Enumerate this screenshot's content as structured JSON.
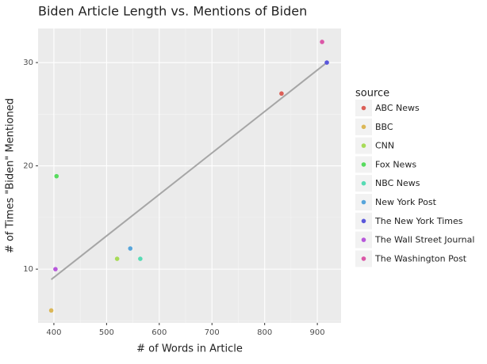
{
  "chart_data": {
    "type": "scatter",
    "title": "Biden Article Length vs. Mentions of Biden",
    "x_label": "# of Words in Article",
    "y_label": "# of Times \"Biden\" Mentioned",
    "legend_title": "source",
    "legend": "right",
    "grid": true,
    "xlim": [
      370,
      945
    ],
    "xticks": [
      400,
      500,
      600,
      700,
      800,
      900
    ],
    "ylim": [
      4.8,
      33.3
    ],
    "yticks": [
      10,
      20,
      30
    ],
    "series": [
      {
        "name": "ABC News",
        "color": "#db5f57",
        "x": [
          832
        ],
        "y": [
          27
        ]
      },
      {
        "name": "BBC",
        "color": "#dbb757",
        "x": [
          395
        ],
        "y": [
          6
        ]
      },
      {
        "name": "CNN",
        "color": "#a7db57",
        "x": [
          520
        ],
        "y": [
          11
        ]
      },
      {
        "name": "Fox News",
        "color": "#57db5e",
        "x": [
          405
        ],
        "y": [
          19
        ]
      },
      {
        "name": "NBC News",
        "color": "#57dbb4",
        "x": [
          564
        ],
        "y": [
          11
        ]
      },
      {
        "name": "New York Post",
        "color": "#57a5db",
        "x": [
          545
        ],
        "y": [
          12
        ]
      },
      {
        "name": "The New York Times",
        "color": "#5a57db",
        "x": [
          918
        ],
        "y": [
          30
        ]
      },
      {
        "name": "The Wall Street Journal",
        "color": "#b757db",
        "x": [
          403
        ],
        "y": [
          10
        ]
      },
      {
        "name": "The Washington Post",
        "color": "#db57a7",
        "x": [
          909
        ],
        "y": [
          32
        ]
      }
    ],
    "trend_line": {
      "color": "#a6a6a6",
      "x": [
        395,
        918
      ],
      "y": [
        9,
        30
      ]
    }
  }
}
